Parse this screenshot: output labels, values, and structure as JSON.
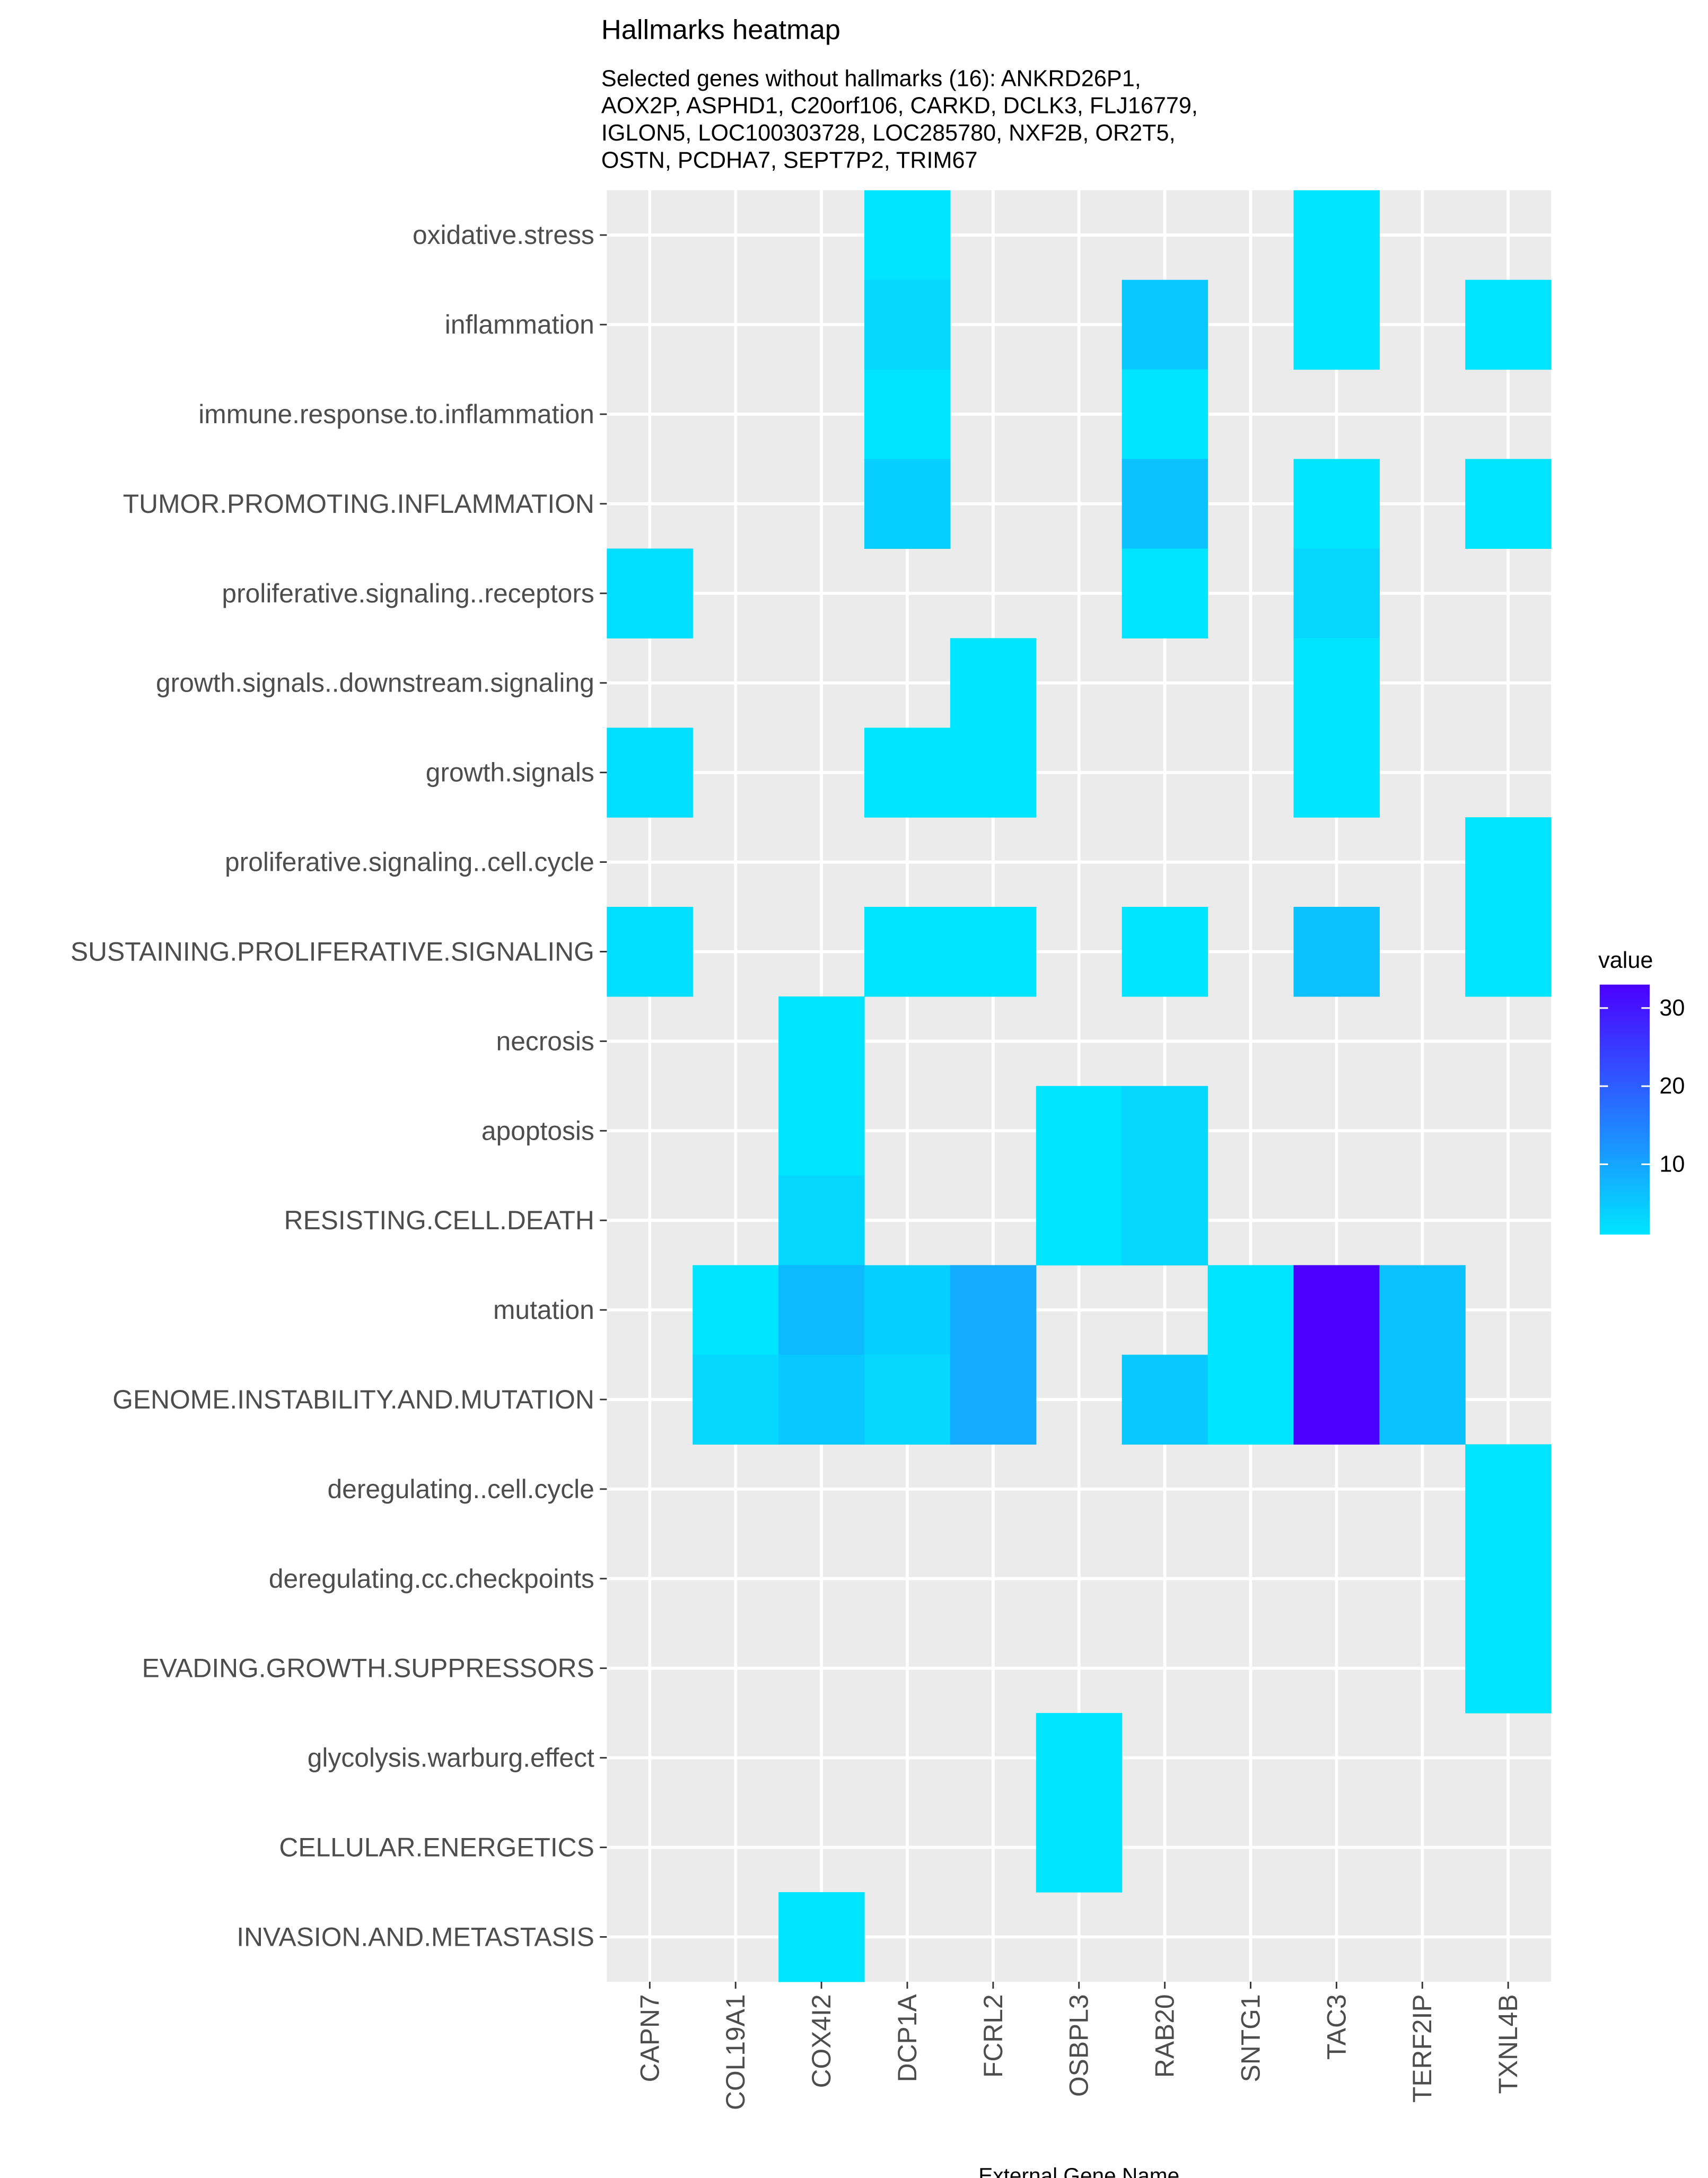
{
  "chart_data": {
    "type": "heatmap",
    "title": "Hallmarks heatmap",
    "subtitle_lines": [
      "Selected genes without hallmarks (16): ANKRD26P1,",
      "AOX2P, ASPHD1, C20orf106, CARKD, DCLK3, FLJ16779,",
      "IGLON5, LOC100303728, LOC285780, NXF2B, OR2T5,",
      "OSTN, PCDHA7, SEPT7P2, TRIM67"
    ],
    "xlabel": "External Gene Name",
    "ylabel": "",
    "x_categories": [
      "CAPN7",
      "COL19A1",
      "COX4I2",
      "DCP1A",
      "FCRL2",
      "OSBPL3",
      "RAB20",
      "SNTG1",
      "TAC3",
      "TERF2IP",
      "TXNL4B"
    ],
    "y_categories": [
      "oxidative.stress",
      "inflammation",
      "immune.response.to.inflammation",
      "TUMOR.PROMOTING.INFLAMMATION",
      "proliferative.signaling..receptors",
      "growth.signals..downstream.signaling",
      "growth.signals",
      "proliferative.signaling..cell.cycle",
      "SUSTAINING.PROLIFERATIVE.SIGNALING",
      "necrosis",
      "apoptosis",
      "RESISTING.CELL.DEATH",
      "mutation",
      "GENOME.INSTABILITY.AND.MUTATION",
      "deregulating..cell.cycle",
      "deregulating.cc.checkpoints",
      "EVADING.GROWTH.SUPPRESSORS",
      "glycolysis.warburg.effect",
      "CELLULAR.ENERGETICS",
      "INVASION.AND.METASTASIS"
    ],
    "cells": [
      {
        "x": "DCP1A",
        "y": "oxidative.stress",
        "value": 1
      },
      {
        "x": "TAC3",
        "y": "oxidative.stress",
        "value": 1
      },
      {
        "x": "DCP1A",
        "y": "inflammation",
        "value": 3
      },
      {
        "x": "RAB20",
        "y": "inflammation",
        "value": 5
      },
      {
        "x": "TAC3",
        "y": "inflammation",
        "value": 1
      },
      {
        "x": "TXNL4B",
        "y": "inflammation",
        "value": 1
      },
      {
        "x": "DCP1A",
        "y": "immune.response.to.inflammation",
        "value": 1
      },
      {
        "x": "RAB20",
        "y": "immune.response.to.inflammation",
        "value": 1
      },
      {
        "x": "DCP1A",
        "y": "TUMOR.PROMOTING.INFLAMMATION",
        "value": 4
      },
      {
        "x": "RAB20",
        "y": "TUMOR.PROMOTING.INFLAMMATION",
        "value": 6
      },
      {
        "x": "TAC3",
        "y": "TUMOR.PROMOTING.INFLAMMATION",
        "value": 1
      },
      {
        "x": "TXNL4B",
        "y": "TUMOR.PROMOTING.INFLAMMATION",
        "value": 1
      },
      {
        "x": "CAPN7",
        "y": "proliferative.signaling..receptors",
        "value": 2
      },
      {
        "x": "RAB20",
        "y": "proliferative.signaling..receptors",
        "value": 1
      },
      {
        "x": "TAC3",
        "y": "proliferative.signaling..receptors",
        "value": 3
      },
      {
        "x": "FCRL2",
        "y": "growth.signals..downstream.signaling",
        "value": 1
      },
      {
        "x": "TAC3",
        "y": "growth.signals..downstream.signaling",
        "value": 1
      },
      {
        "x": "CAPN7",
        "y": "growth.signals",
        "value": 2
      },
      {
        "x": "DCP1A",
        "y": "growth.signals",
        "value": 1
      },
      {
        "x": "FCRL2",
        "y": "growth.signals",
        "value": 1
      },
      {
        "x": "TAC3",
        "y": "growth.signals",
        "value": 1
      },
      {
        "x": "TXNL4B",
        "y": "proliferative.signaling..cell.cycle",
        "value": 1
      },
      {
        "x": "CAPN7",
        "y": "SUSTAINING.PROLIFERATIVE.SIGNALING",
        "value": 2
      },
      {
        "x": "DCP1A",
        "y": "SUSTAINING.PROLIFERATIVE.SIGNALING",
        "value": 1
      },
      {
        "x": "FCRL2",
        "y": "SUSTAINING.PROLIFERATIVE.SIGNALING",
        "value": 1
      },
      {
        "x": "RAB20",
        "y": "SUSTAINING.PROLIFERATIVE.SIGNALING",
        "value": 1
      },
      {
        "x": "TAC3",
        "y": "SUSTAINING.PROLIFERATIVE.SIGNALING",
        "value": 6
      },
      {
        "x": "TXNL4B",
        "y": "SUSTAINING.PROLIFERATIVE.SIGNALING",
        "value": 1
      },
      {
        "x": "COX4I2",
        "y": "necrosis",
        "value": 1
      },
      {
        "x": "COX4I2",
        "y": "apoptosis",
        "value": 1
      },
      {
        "x": "OSBPL3",
        "y": "apoptosis",
        "value": 1
      },
      {
        "x": "RAB20",
        "y": "apoptosis",
        "value": 3
      },
      {
        "x": "COX4I2",
        "y": "RESISTING.CELL.DEATH",
        "value": 3
      },
      {
        "x": "OSBPL3",
        "y": "RESISTING.CELL.DEATH",
        "value": 1
      },
      {
        "x": "RAB20",
        "y": "RESISTING.CELL.DEATH",
        "value": 3
      },
      {
        "x": "COL19A1",
        "y": "mutation",
        "value": 1
      },
      {
        "x": "COX4I2",
        "y": "mutation",
        "value": 7
      },
      {
        "x": "DCP1A",
        "y": "mutation",
        "value": 4
      },
      {
        "x": "FCRL2",
        "y": "mutation",
        "value": 9
      },
      {
        "x": "SNTG1",
        "y": "mutation",
        "value": 1
      },
      {
        "x": "TAC3",
        "y": "mutation",
        "value": 33
      },
      {
        "x": "TERF2IP",
        "y": "mutation",
        "value": 6
      },
      {
        "x": "COL19A1",
        "y": "GENOME.INSTABILITY.AND.MUTATION",
        "value": 3
      },
      {
        "x": "COX4I2",
        "y": "GENOME.INSTABILITY.AND.MUTATION",
        "value": 5
      },
      {
        "x": "DCP1A",
        "y": "GENOME.INSTABILITY.AND.MUTATION",
        "value": 3
      },
      {
        "x": "FCRL2",
        "y": "GENOME.INSTABILITY.AND.MUTATION",
        "value": 9
      },
      {
        "x": "RAB20",
        "y": "GENOME.INSTABILITY.AND.MUTATION",
        "value": 5
      },
      {
        "x": "SNTG1",
        "y": "GENOME.INSTABILITY.AND.MUTATION",
        "value": 1
      },
      {
        "x": "TAC3",
        "y": "GENOME.INSTABILITY.AND.MUTATION",
        "value": 33
      },
      {
        "x": "TERF2IP",
        "y": "GENOME.INSTABILITY.AND.MUTATION",
        "value": 6
      },
      {
        "x": "TXNL4B",
        "y": "deregulating..cell.cycle",
        "value": 1
      },
      {
        "x": "TXNL4B",
        "y": "deregulating.cc.checkpoints",
        "value": 1
      },
      {
        "x": "TXNL4B",
        "y": "EVADING.GROWTH.SUPPRESSORS",
        "value": 1
      },
      {
        "x": "OSBPL3",
        "y": "glycolysis.warburg.effect",
        "value": 1
      },
      {
        "x": "OSBPL3",
        "y": "CELLULAR.ENERGETICS",
        "value": 1
      },
      {
        "x": "COX4I2",
        "y": "INVASION.AND.METASTASIS",
        "value": 1
      }
    ],
    "legend": {
      "title": "value",
      "ticks": [
        10,
        20,
        30
      ],
      "range": [
        1,
        33
      ],
      "low_color": "#00e5ff",
      "high_color": "#4b00ff",
      "placement": "right"
    },
    "colors": {
      "panel_background": "#ebebeb",
      "grid_major": "#ffffff",
      "axis_text": "#4d4d4d",
      "tick": "#333333"
    },
    "grid": true
  }
}
